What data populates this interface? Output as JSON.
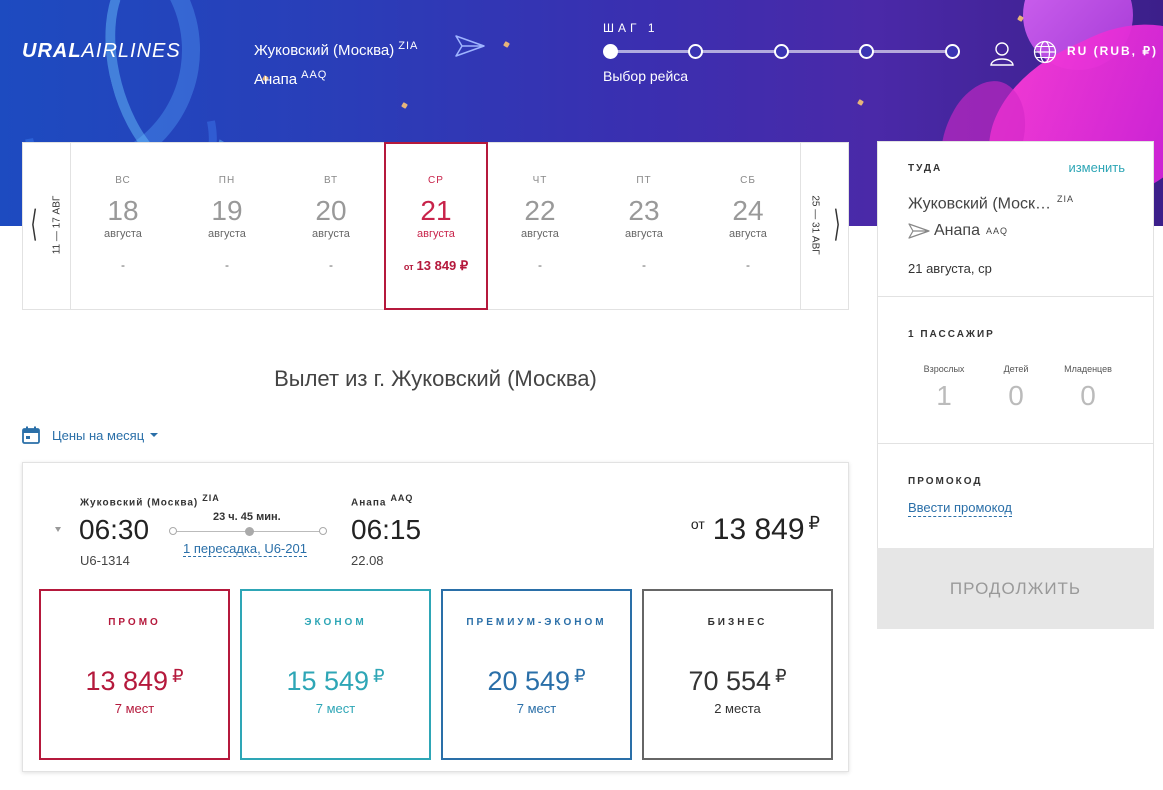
{
  "header": {
    "logo_bold": "URAL",
    "logo_light": "AIRLINES",
    "origin": "Жуковский (Москва)",
    "origin_code": "ZIA",
    "destination": "Анапа",
    "destination_code": "AAQ",
    "step_title": "ШАГ 1",
    "step_label": "Выбор рейса",
    "step_total": 5,
    "step_current": 1,
    "lang": "RU (RUB, ₽)"
  },
  "dates": {
    "prev_range": "11 — 17 АВГ",
    "next_range": "25 — 31 АВГ",
    "days": [
      {
        "dow": "ВС",
        "num": "18",
        "month": "августа",
        "price": "-"
      },
      {
        "dow": "ПН",
        "num": "19",
        "month": "августа",
        "price": "-"
      },
      {
        "dow": "ВТ",
        "num": "20",
        "month": "августа",
        "price": "-"
      },
      {
        "dow": "СР",
        "num": "21",
        "month": "августа",
        "price_prefix": "от",
        "price": "13 849 ₽",
        "selected": true
      },
      {
        "dow": "ЧТ",
        "num": "22",
        "month": "августа",
        "price": "-"
      },
      {
        "dow": "ПТ",
        "num": "23",
        "month": "августа",
        "price": "-"
      },
      {
        "dow": "СБ",
        "num": "24",
        "month": "августа",
        "price": "-"
      }
    ]
  },
  "departure_title": "Вылет из г. Жуковский (Москва)",
  "month_prices": "Цены на месяц",
  "flight": {
    "from_city": "Жуковский (Москва)",
    "from_code": "ZIA",
    "dep_time": "06:30",
    "flight_no": "U6-1314",
    "duration": "23 ч. 45 мин.",
    "transfer": "1 пересадка, U6-201",
    "to_city": "Анапа",
    "to_code": "AAQ",
    "arr_time": "06:15",
    "arr_date": "22.08",
    "price_prefix": "от",
    "price": "13 849",
    "currency": "₽",
    "fares": [
      {
        "name": "ПРОМО",
        "price": "13 849",
        "currency": "₽",
        "seats": "7 мест"
      },
      {
        "name": "ЭКОНОМ",
        "price": "15 549",
        "currency": "₽",
        "seats": "7 мест"
      },
      {
        "name": "ПРЕМИУМ-ЭКОНОМ",
        "price": "20 549",
        "currency": "₽",
        "seats": "7 мест"
      },
      {
        "name": "БИЗНЕС",
        "price": "70 554",
        "currency": "₽",
        "seats": "2 места"
      }
    ]
  },
  "summary": {
    "direction": "ТУДА",
    "change": "изменить",
    "from": "Жуковский (Моск…",
    "from_code": "ZIA",
    "to": "Анапа",
    "to_code": "AAQ",
    "date": "21 августа, ср",
    "passengers_title": "1 ПАССАЖИР",
    "adults_label": "Взрослых",
    "adults": "1",
    "children_label": "Детей",
    "children": "0",
    "infants_label": "Младенцев",
    "infants": "0",
    "promo_title": "ПРОМОКОД",
    "promo_link": "Ввести промокод",
    "continue": "ПРОДОЛЖИТЬ"
  },
  "colors": {
    "promo": "#b5193c",
    "econom": "#2ea6b6",
    "premium": "#2a6fa8",
    "business": "#333333"
  }
}
